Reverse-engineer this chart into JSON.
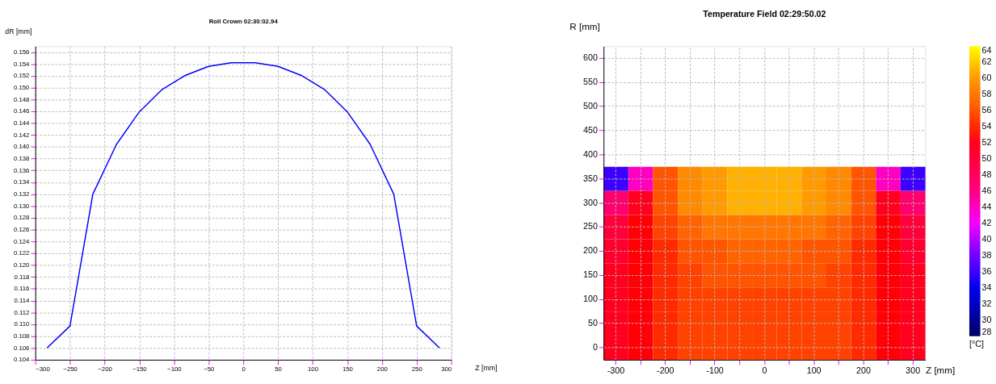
{
  "chart_data": [
    {
      "type": "line",
      "title": "Roll Crown 02:30:02.94",
      "xlabel": "Z [mm]",
      "ylabel": "dR [mm]",
      "x": [
        -283,
        -250,
        -217,
        -183,
        -150,
        -117,
        -83,
        -50,
        -17,
        17,
        50,
        83,
        117,
        150,
        183,
        217,
        250,
        283
      ],
      "series": [
        {
          "color": "#0000ff",
          "values": [
            0.106,
            0.1097,
            0.132,
            0.1404,
            0.1459,
            0.1497,
            0.1521,
            0.1536,
            0.1542,
            0.1542,
            0.1536,
            0.1521,
            0.1497,
            0.1459,
            0.1404,
            0.132,
            0.1097,
            0.106
          ]
        }
      ],
      "xlim": [
        -300,
        300
      ],
      "xticks": [
        -300,
        -250,
        -200,
        -150,
        -100,
        -50,
        0,
        50,
        100,
        150,
        200,
        250,
        300
      ],
      "ylim": [
        0.104,
        0.157
      ],
      "yticks": [
        0.104,
        0.106,
        0.108,
        {
          "value": 0.11,
          "label": "0.110"
        },
        0.112,
        0.114,
        0.116,
        0.118,
        {
          "value": 0.12,
          "label": "0.120"
        },
        0.122,
        0.124,
        0.126,
        0.128,
        {
          "value": 0.13,
          "label": "0.130"
        },
        0.132,
        0.134,
        0.136,
        0.138,
        {
          "value": 0.14,
          "label": "0.140"
        },
        0.142,
        0.144,
        0.146,
        0.148,
        {
          "value": 0.15,
          "label": "0.150"
        },
        0.152,
        0.154,
        0.156
      ],
      "grid": true,
      "marker": "none",
      "line_style": "solid"
    },
    {
      "type": "heatmap",
      "title": "Temperature Field 02:29:50.02",
      "xlabel": "Z [mm]",
      "ylabel": "R [mm]",
      "clabel": "[°C]",
      "categories": [
        "-300",
        null,
        "-200",
        null,
        "-100",
        null,
        "0",
        null,
        "100",
        null,
        "200",
        null,
        "300"
      ],
      "y_categories": [
        "600",
        "550",
        "500",
        "450",
        "400",
        "350",
        "300",
        "250",
        "200",
        "150",
        "100",
        "50",
        "0"
      ],
      "cells": [
        [
          null,
          null,
          null,
          null,
          null,
          null,
          null,
          null,
          null,
          null,
          null,
          null,
          null
        ],
        [
          null,
          null,
          null,
          null,
          null,
          null,
          null,
          null,
          null,
          null,
          null,
          null,
          null
        ],
        [
          null,
          null,
          null,
          null,
          null,
          null,
          null,
          null,
          null,
          null,
          null,
          null,
          null
        ],
        [
          null,
          null,
          null,
          null,
          null,
          null,
          null,
          null,
          null,
          null,
          null,
          null,
          null
        ],
        [
          null,
          null,
          null,
          null,
          null,
          null,
          null,
          null,
          null,
          null,
          null,
          null,
          null
        ],
        [
          36,
          44,
          56,
          59,
          60,
          61,
          61,
          61,
          60,
          59,
          56,
          44,
          36
        ],
        [
          47,
          52,
          56,
          59,
          60,
          61,
          61,
          61,
          60,
          59,
          56,
          52,
          47
        ],
        [
          50,
          53,
          55,
          57,
          58,
          58,
          58,
          58,
          58,
          57,
          55,
          53,
          50
        ],
        [
          51,
          53,
          54,
          56,
          56,
          57,
          57,
          57,
          56,
          56,
          54,
          53,
          51
        ],
        [
          52,
          53,
          54,
          55,
          56,
          56,
          56,
          56,
          56,
          55,
          54,
          53,
          52
        ],
        [
          52,
          53,
          54,
          55,
          55,
          55,
          55,
          55,
          55,
          55,
          54,
          53,
          52
        ],
        [
          52,
          53,
          54,
          55,
          55,
          55,
          55,
          55,
          55,
          55,
          54,
          53,
          52
        ],
        [
          52,
          53,
          54,
          55,
          55,
          55,
          55,
          55,
          55,
          55,
          54,
          53,
          52
        ]
      ],
      "clim": [
        28,
        64
      ],
      "cticks": [
        28,
        30,
        32,
        34,
        36,
        38,
        40,
        42,
        44,
        46,
        48,
        50,
        52,
        54,
        56,
        58,
        60,
        62,
        64
      ],
      "grid": true
    }
  ]
}
